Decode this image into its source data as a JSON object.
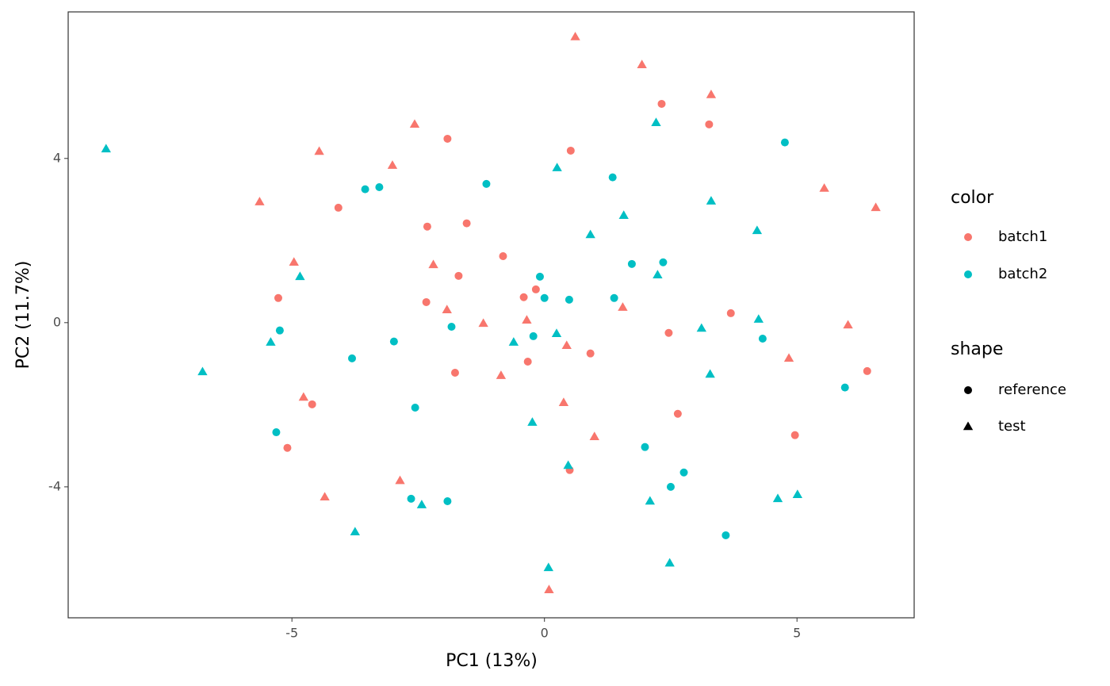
{
  "chart_data": {
    "type": "scatter",
    "xlabel": "PC1 (13%)",
    "ylabel": "PC2 (11.7%)",
    "xlim": [
      -9.43,
      7.32
    ],
    "ylim": [
      -7.19,
      7.57
    ],
    "xticks": [
      -5,
      0,
      5
    ],
    "yticks": [
      -4,
      0,
      4
    ],
    "grid": false,
    "legend": {
      "color": {
        "title": "color",
        "items": [
          {
            "label": "batch1",
            "color": "#F8766D"
          },
          {
            "label": "batch2",
            "color": "#00BFC4"
          }
        ]
      },
      "shape": {
        "title": "shape",
        "items": [
          {
            "label": "reference",
            "shape": "circle"
          },
          {
            "label": "test",
            "shape": "triangle"
          }
        ]
      }
    },
    "series": [
      {
        "color": "batch1",
        "shape": "reference",
        "x": [
          -1.92,
          0.52,
          2.32,
          3.26,
          -4.08,
          -2.32,
          -1.54,
          -0.82,
          -1.7,
          -5.27,
          -2.34,
          -0.41,
          -0.17,
          3.69,
          2.46,
          0.91,
          -0.33,
          -1.77,
          -4.6,
          2.64,
          6.39,
          4.96,
          -5.09,
          0.5
        ],
        "y": [
          4.48,
          4.19,
          5.33,
          4.83,
          2.8,
          2.34,
          2.42,
          1.62,
          1.14,
          0.6,
          0.5,
          0.62,
          0.81,
          0.23,
          -0.25,
          -0.75,
          -0.95,
          -1.22,
          -1.99,
          -2.22,
          -1.18,
          -2.74,
          -3.05,
          -3.59
        ]
      },
      {
        "color": "batch1",
        "shape": "test",
        "x": [
          0.61,
          1.93,
          3.3,
          -2.57,
          -4.46,
          -3.01,
          -5.64,
          5.54,
          6.56,
          -4.96,
          -2.2,
          -1.93,
          1.55,
          -1.21,
          -0.35,
          0.44,
          6.01,
          4.84,
          -0.86,
          -4.77,
          0.38,
          0.99,
          -2.86,
          -4.35,
          0.09
        ],
        "y": [
          6.96,
          6.28,
          5.55,
          4.83,
          4.17,
          3.83,
          2.94,
          3.27,
          2.8,
          1.47,
          1.41,
          0.31,
          0.37,
          -0.02,
          0.06,
          -0.56,
          -0.06,
          -0.87,
          -1.29,
          -1.82,
          -1.95,
          -2.78,
          -3.85,
          -4.25,
          -6.51
        ]
      },
      {
        "color": "batch2",
        "shape": "reference",
        "x": [
          4.76,
          1.35,
          -1.15,
          -3.55,
          -3.27,
          1.73,
          2.35,
          -0.09,
          0.0,
          0.49,
          1.38,
          -5.24,
          -1.84,
          -0.22,
          -2.98,
          4.32,
          -3.81,
          5.95,
          -2.56,
          -5.31,
          1.99,
          2.76,
          2.5,
          -2.64,
          -1.92,
          3.59
        ],
        "y": [
          4.39,
          3.54,
          3.38,
          3.25,
          3.3,
          1.43,
          1.47,
          1.12,
          0.6,
          0.56,
          0.6,
          -0.19,
          -0.1,
          -0.33,
          -0.46,
          -0.39,
          -0.87,
          -1.58,
          -2.07,
          -2.67,
          -3.03,
          -3.65,
          -4.0,
          -4.29,
          -4.35,
          -5.18
        ]
      },
      {
        "color": "batch2",
        "shape": "test",
        "x": [
          -8.68,
          2.21,
          0.25,
          3.3,
          1.57,
          0.91,
          4.21,
          2.24,
          -4.84,
          -5.42,
          -0.61,
          0.24,
          3.11,
          4.24,
          -6.77,
          3.28,
          -0.24,
          0.47,
          -2.43,
          2.09,
          4.62,
          5.01,
          -3.75,
          0.08,
          2.48
        ],
        "y": [
          4.23,
          4.87,
          3.77,
          2.96,
          2.61,
          2.14,
          2.24,
          1.16,
          1.12,
          -0.48,
          -0.48,
          -0.27,
          -0.14,
          0.08,
          -1.2,
          -1.26,
          -2.43,
          -3.48,
          -4.44,
          -4.35,
          -4.29,
          -4.19,
          -5.1,
          -5.97,
          -5.86
        ]
      }
    ]
  }
}
